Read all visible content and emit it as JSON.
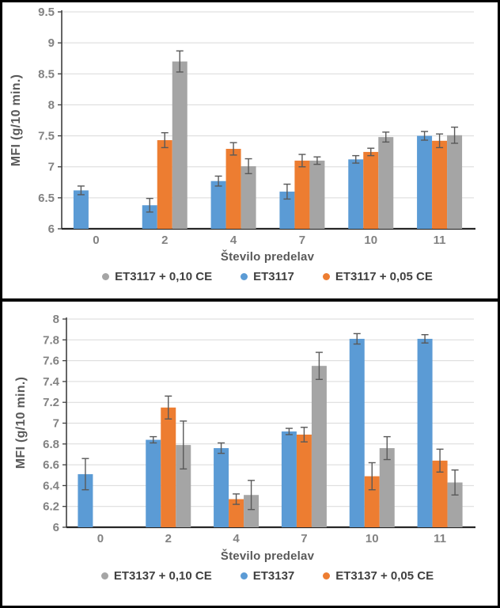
{
  "page": {
    "frame_color": "#000000",
    "background": "#ffffff"
  },
  "chart_data": [
    {
      "type": "bar",
      "title": "",
      "xlabel": "Število predelav",
      "ylabel": "MFI (g/10 min.)",
      "ylim": [
        6,
        9.5
      ],
      "ytick_step": 0.5,
      "yticks": [
        "6",
        "6.5",
        "7",
        "7.5",
        "8",
        "8.5",
        "9",
        "9.5"
      ],
      "categories": [
        "0",
        "2",
        "4",
        "7",
        "10",
        "11"
      ],
      "grid": true,
      "error_bars": true,
      "error_bar_color": "#595959",
      "axis_color": "#3f3f3f",
      "gridline_color": "#d9d9d9",
      "legend_position": "bottom",
      "series": [
        {
          "name": "ET3117",
          "color": "#5B9BD5",
          "values": [
            6.62,
            6.38,
            6.77,
            6.6,
            7.12,
            7.5
          ],
          "errors": [
            0.07,
            0.11,
            0.08,
            0.12,
            0.06,
            0.07
          ]
        },
        {
          "name": "ET3117 + 0,05 CE",
          "color": "#ED7D31",
          "values": [
            null,
            7.43,
            7.29,
            7.1,
            7.24,
            7.42
          ],
          "errors": [
            null,
            0.12,
            0.1,
            0.1,
            0.06,
            0.11
          ]
        },
        {
          "name": "ET3117 + 0,10 CE",
          "color": "#A5A5A5",
          "values": [
            null,
            8.7,
            7.01,
            7.1,
            7.48,
            7.51
          ],
          "errors": [
            null,
            0.17,
            0.12,
            0.06,
            0.08,
            0.13
          ]
        }
      ],
      "legend": [
        {
          "label": "ET3117 + 0,10 CE",
          "color": "#A5A5A5"
        },
        {
          "label": "ET3117",
          "color": "#5B9BD5"
        },
        {
          "label": "ET3117 + 0,05 CE",
          "color": "#ED7D31"
        }
      ]
    },
    {
      "type": "bar",
      "title": "",
      "xlabel": "Število predelav",
      "ylabel": "MFI (g/10 min.)",
      "ylim": [
        6,
        8
      ],
      "ytick_step": 0.2,
      "yticks": [
        "6",
        "6.2",
        "6.4",
        "6.6",
        "6.8",
        "7",
        "7.2",
        "7.4",
        "7.6",
        "7.8",
        "8"
      ],
      "categories": [
        "0",
        "2",
        "4",
        "7",
        "10",
        "11"
      ],
      "grid": true,
      "error_bars": true,
      "error_bar_color": "#595959",
      "axis_color": "#3f3f3f",
      "gridline_color": "#d9d9d9",
      "legend_position": "bottom",
      "series": [
        {
          "name": "ET3137",
          "color": "#5B9BD5",
          "values": [
            6.51,
            6.84,
            6.76,
            6.92,
            7.81,
            7.81
          ],
          "errors": [
            0.15,
            0.03,
            0.05,
            0.03,
            0.05,
            0.04
          ]
        },
        {
          "name": "ET3137 + 0,05 CE",
          "color": "#ED7D31",
          "values": [
            null,
            7.15,
            6.27,
            6.89,
            6.49,
            6.64
          ],
          "errors": [
            null,
            0.11,
            0.05,
            0.07,
            0.13,
            0.11
          ]
        },
        {
          "name": "ET3137 + 0,10 CE",
          "color": "#A5A5A5",
          "values": [
            null,
            6.79,
            6.31,
            7.55,
            6.76,
            6.43
          ],
          "errors": [
            null,
            0.23,
            0.14,
            0.13,
            0.11,
            0.12
          ]
        }
      ],
      "legend": [
        {
          "label": "ET3137 + 0,10 CE",
          "color": "#A5A5A5"
        },
        {
          "label": "ET3137",
          "color": "#5B9BD5"
        },
        {
          "label": "ET3137 + 0,05 CE",
          "color": "#ED7D31"
        }
      ]
    }
  ]
}
